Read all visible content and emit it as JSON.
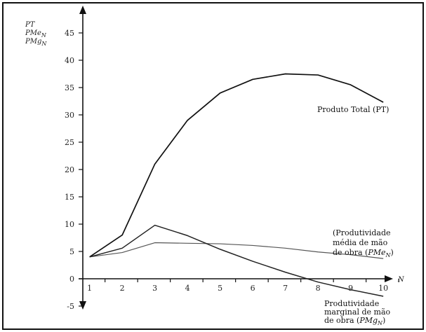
{
  "chart_data": {
    "type": "line",
    "xlabel": "N",
    "ylabel_lines": [
      "PT",
      "PMe_N",
      "PMg_N"
    ],
    "x_ticks": [
      1,
      2,
      3,
      4,
      5,
      6,
      7,
      8,
      9,
      10
    ],
    "y_ticks": [
      -5,
      0,
      5,
      10,
      15,
      20,
      25,
      30,
      35,
      40,
      45
    ],
    "xlim": [
      0,
      11.5
    ],
    "ylim": [
      -5,
      50
    ],
    "grid": false,
    "series": [
      {
        "name_lines": [
          "Produto Total (PT)"
        ],
        "x": [
          1,
          2,
          3,
          4,
          5,
          6,
          7,
          8,
          9,
          10
        ],
        "y": [
          4,
          8,
          21,
          29,
          34,
          36.5,
          37.5,
          37.3,
          35.5,
          32.3
        ],
        "color": "#111111"
      },
      {
        "name_lines": [
          "(Produtividade",
          "média de mão",
          "de obra (PMe_N)"
        ],
        "x": [
          1,
          2,
          3,
          4,
          5,
          6,
          7,
          8,
          9,
          10
        ],
        "y": [
          4,
          4.8,
          6.6,
          6.5,
          6.4,
          6.1,
          5.6,
          4.9,
          4.4,
          3.7
        ],
        "color": "#555555"
      },
      {
        "name_lines": [
          "Produtividade",
          "marginal de mão",
          "de obra (PMg_N)"
        ],
        "x": [
          1,
          2,
          3,
          4,
          5,
          6,
          7,
          8,
          9,
          10
        ],
        "y": [
          4,
          5.6,
          9.8,
          7.9,
          5.4,
          3.2,
          1.2,
          -0.6,
          -2.0,
          -3.2
        ],
        "color": "#222222"
      }
    ]
  }
}
